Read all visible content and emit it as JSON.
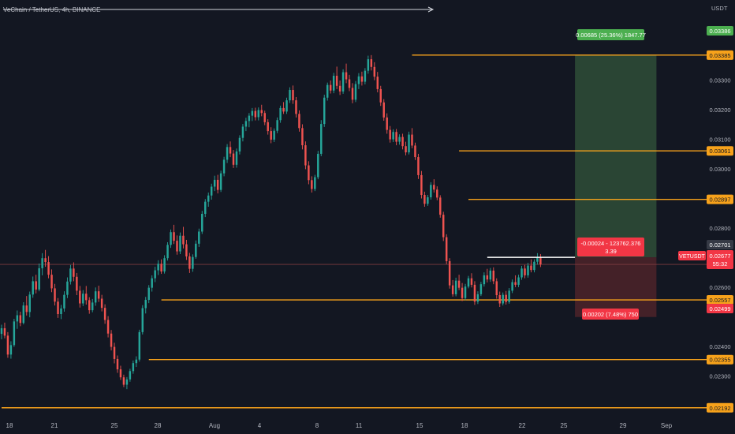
{
  "header": {
    "title": "VeChain / TetherUS, 4h, BINANCE",
    "currency": "USDT"
  },
  "colors": {
    "background": "#131722",
    "up": "#26a69a",
    "down": "#ef5350",
    "level": "#f7a21b",
    "target_zone": "#2e4a36",
    "stop_zone": "#4a2229",
    "price_line": "#7e3a3f",
    "axis_text": "#b2b5be"
  },
  "chart_data": {
    "type": "candlestick",
    "symbol": "VETUSDT",
    "timeframe": "4h",
    "x_ticks": [
      "18",
      "21",
      "25",
      "28",
      "Aug",
      "4",
      "8",
      "11",
      "15",
      "18",
      "22",
      "25",
      "29",
      "Sep"
    ],
    "y_ticks": [
      "0.02300",
      "0.02400",
      "0.02600",
      "0.02800",
      "0.03000",
      "0.03100",
      "0.03200",
      "0.03300"
    ],
    "ylim": [
      0.0217,
      0.0355
    ],
    "candles": [
      {
        "o": 0.02442,
        "h": 0.02473,
        "l": 0.02424,
        "c": 0.02461
      },
      {
        "o": 0.02461,
        "h": 0.0248,
        "l": 0.02427,
        "c": 0.02436
      },
      {
        "o": 0.02436,
        "h": 0.02448,
        "l": 0.02361,
        "c": 0.02372
      },
      {
        "o": 0.02372,
        "h": 0.02417,
        "l": 0.02358,
        "c": 0.02404
      },
      {
        "o": 0.02404,
        "h": 0.02493,
        "l": 0.02398,
        "c": 0.02484
      },
      {
        "o": 0.02484,
        "h": 0.02521,
        "l": 0.02459,
        "c": 0.02505
      },
      {
        "o": 0.02505,
        "h": 0.02517,
        "l": 0.02468,
        "c": 0.02479
      },
      {
        "o": 0.02479,
        "h": 0.02549,
        "l": 0.02474,
        "c": 0.02538
      },
      {
        "o": 0.02538,
        "h": 0.0257,
        "l": 0.02504,
        "c": 0.02516
      },
      {
        "o": 0.02516,
        "h": 0.02585,
        "l": 0.02498,
        "c": 0.02575
      },
      {
        "o": 0.02575,
        "h": 0.02636,
        "l": 0.02564,
        "c": 0.0262
      },
      {
        "o": 0.0262,
        "h": 0.02642,
        "l": 0.02579,
        "c": 0.02592
      },
      {
        "o": 0.02592,
        "h": 0.0268,
        "l": 0.02586,
        "c": 0.02664
      },
      {
        "o": 0.02664,
        "h": 0.02715,
        "l": 0.0264,
        "c": 0.02698
      },
      {
        "o": 0.02698,
        "h": 0.02726,
        "l": 0.02669,
        "c": 0.02685
      },
      {
        "o": 0.02685,
        "h": 0.02705,
        "l": 0.0263,
        "c": 0.02642
      },
      {
        "o": 0.02642,
        "h": 0.0266,
        "l": 0.02583,
        "c": 0.02596
      },
      {
        "o": 0.02596,
        "h": 0.02611,
        "l": 0.02538,
        "c": 0.02551
      },
      {
        "o": 0.02551,
        "h": 0.02563,
        "l": 0.02496,
        "c": 0.02509
      },
      {
        "o": 0.02509,
        "h": 0.0254,
        "l": 0.02492,
        "c": 0.02528
      },
      {
        "o": 0.02528,
        "h": 0.02586,
        "l": 0.02517,
        "c": 0.02574
      },
      {
        "o": 0.02574,
        "h": 0.02633,
        "l": 0.02563,
        "c": 0.02619
      },
      {
        "o": 0.02619,
        "h": 0.02675,
        "l": 0.02609,
        "c": 0.02663
      },
      {
        "o": 0.02663,
        "h": 0.02684,
        "l": 0.0262,
        "c": 0.02635
      },
      {
        "o": 0.02635,
        "h": 0.02648,
        "l": 0.02573,
        "c": 0.02588
      },
      {
        "o": 0.02588,
        "h": 0.02604,
        "l": 0.02531,
        "c": 0.02545
      },
      {
        "o": 0.02545,
        "h": 0.0259,
        "l": 0.02536,
        "c": 0.02578
      },
      {
        "o": 0.02578,
        "h": 0.02604,
        "l": 0.02541,
        "c": 0.02556
      },
      {
        "o": 0.02556,
        "h": 0.02566,
        "l": 0.0251,
        "c": 0.02522
      },
      {
        "o": 0.02522,
        "h": 0.0256,
        "l": 0.02515,
        "c": 0.02548
      },
      {
        "o": 0.02548,
        "h": 0.02599,
        "l": 0.02537,
        "c": 0.02586
      },
      {
        "o": 0.02586,
        "h": 0.02605,
        "l": 0.0255,
        "c": 0.02561
      },
      {
        "o": 0.02561,
        "h": 0.02574,
        "l": 0.02518,
        "c": 0.0253
      },
      {
        "o": 0.0253,
        "h": 0.02542,
        "l": 0.02476,
        "c": 0.02489
      },
      {
        "o": 0.02489,
        "h": 0.02502,
        "l": 0.0243,
        "c": 0.02443
      },
      {
        "o": 0.02443,
        "h": 0.02455,
        "l": 0.02386,
        "c": 0.02398
      },
      {
        "o": 0.02398,
        "h": 0.02412,
        "l": 0.02342,
        "c": 0.02357
      },
      {
        "o": 0.02357,
        "h": 0.02369,
        "l": 0.0231,
        "c": 0.02322
      },
      {
        "o": 0.02322,
        "h": 0.02334,
        "l": 0.02286,
        "c": 0.02295
      },
      {
        "o": 0.02295,
        "h": 0.02304,
        "l": 0.02262,
        "c": 0.0227
      },
      {
        "o": 0.0227,
        "h": 0.02296,
        "l": 0.02255,
        "c": 0.02288
      },
      {
        "o": 0.02288,
        "h": 0.02324,
        "l": 0.0228,
        "c": 0.02316
      },
      {
        "o": 0.02316,
        "h": 0.02352,
        "l": 0.02307,
        "c": 0.02343
      },
      {
        "o": 0.02343,
        "h": 0.02366,
        "l": 0.0233,
        "c": 0.02355
      },
      {
        "o": 0.02355,
        "h": 0.02456,
        "l": 0.02348,
        "c": 0.02448
      },
      {
        "o": 0.02448,
        "h": 0.02539,
        "l": 0.0244,
        "c": 0.02529
      },
      {
        "o": 0.02529,
        "h": 0.02567,
        "l": 0.02511,
        "c": 0.02557
      },
      {
        "o": 0.02557,
        "h": 0.02607,
        "l": 0.02546,
        "c": 0.02598
      },
      {
        "o": 0.02598,
        "h": 0.0264,
        "l": 0.02585,
        "c": 0.0263
      },
      {
        "o": 0.0263,
        "h": 0.02669,
        "l": 0.02617,
        "c": 0.02657
      },
      {
        "o": 0.02657,
        "h": 0.02691,
        "l": 0.02641,
        "c": 0.02679
      },
      {
        "o": 0.02679,
        "h": 0.02694,
        "l": 0.02645,
        "c": 0.02653
      },
      {
        "o": 0.02653,
        "h": 0.02708,
        "l": 0.02646,
        "c": 0.02698
      },
      {
        "o": 0.02698,
        "h": 0.02752,
        "l": 0.0269,
        "c": 0.02743
      },
      {
        "o": 0.02743,
        "h": 0.02795,
        "l": 0.02733,
        "c": 0.02786
      },
      {
        "o": 0.02786,
        "h": 0.02811,
        "l": 0.02746,
        "c": 0.02757
      },
      {
        "o": 0.02757,
        "h": 0.02775,
        "l": 0.0271,
        "c": 0.02721
      },
      {
        "o": 0.02721,
        "h": 0.02785,
        "l": 0.02712,
        "c": 0.02774
      },
      {
        "o": 0.02774,
        "h": 0.02804,
        "l": 0.02731,
        "c": 0.02745
      },
      {
        "o": 0.02745,
        "h": 0.0276,
        "l": 0.02692,
        "c": 0.02704
      },
      {
        "o": 0.02704,
        "h": 0.02716,
        "l": 0.02648,
        "c": 0.02662
      },
      {
        "o": 0.02662,
        "h": 0.02711,
        "l": 0.02652,
        "c": 0.02702
      },
      {
        "o": 0.02702,
        "h": 0.02758,
        "l": 0.02696,
        "c": 0.02747
      },
      {
        "o": 0.02747,
        "h": 0.02798,
        "l": 0.02736,
        "c": 0.02788
      },
      {
        "o": 0.02788,
        "h": 0.02858,
        "l": 0.0278,
        "c": 0.02848
      },
      {
        "o": 0.02848,
        "h": 0.02898,
        "l": 0.02837,
        "c": 0.02889
      },
      {
        "o": 0.02889,
        "h": 0.0292,
        "l": 0.02872,
        "c": 0.0291
      },
      {
        "o": 0.0291,
        "h": 0.0295,
        "l": 0.02896,
        "c": 0.0294
      },
      {
        "o": 0.0294,
        "h": 0.02977,
        "l": 0.02925,
        "c": 0.02963
      },
      {
        "o": 0.02963,
        "h": 0.0298,
        "l": 0.02917,
        "c": 0.02929
      },
      {
        "o": 0.02929,
        "h": 0.02994,
        "l": 0.02922,
        "c": 0.02985
      },
      {
        "o": 0.02985,
        "h": 0.03041,
        "l": 0.02975,
        "c": 0.03031
      },
      {
        "o": 0.03031,
        "h": 0.03084,
        "l": 0.0302,
        "c": 0.03074
      },
      {
        "o": 0.03074,
        "h": 0.03093,
        "l": 0.0304,
        "c": 0.03052
      },
      {
        "o": 0.03052,
        "h": 0.03064,
        "l": 0.03003,
        "c": 0.03014
      },
      {
        "o": 0.03014,
        "h": 0.03069,
        "l": 0.03004,
        "c": 0.03059
      },
      {
        "o": 0.03059,
        "h": 0.03114,
        "l": 0.03049,
        "c": 0.03105
      },
      {
        "o": 0.03105,
        "h": 0.03152,
        "l": 0.03093,
        "c": 0.03143
      },
      {
        "o": 0.03143,
        "h": 0.03173,
        "l": 0.03128,
        "c": 0.03162
      },
      {
        "o": 0.03162,
        "h": 0.03189,
        "l": 0.03141,
        "c": 0.0318
      },
      {
        "o": 0.0318,
        "h": 0.03206,
        "l": 0.03162,
        "c": 0.03196
      },
      {
        "o": 0.03196,
        "h": 0.03207,
        "l": 0.03164,
        "c": 0.03175
      },
      {
        "o": 0.03175,
        "h": 0.03208,
        "l": 0.03164,
        "c": 0.03199
      },
      {
        "o": 0.03199,
        "h": 0.03217,
        "l": 0.03178,
        "c": 0.03189
      },
      {
        "o": 0.03189,
        "h": 0.03197,
        "l": 0.03148,
        "c": 0.03158
      },
      {
        "o": 0.03158,
        "h": 0.03168,
        "l": 0.03116,
        "c": 0.03128
      },
      {
        "o": 0.03128,
        "h": 0.03141,
        "l": 0.03087,
        "c": 0.03099
      },
      {
        "o": 0.03099,
        "h": 0.03137,
        "l": 0.03091,
        "c": 0.03129
      },
      {
        "o": 0.03129,
        "h": 0.03174,
        "l": 0.03121,
        "c": 0.03165
      },
      {
        "o": 0.03165,
        "h": 0.03214,
        "l": 0.03156,
        "c": 0.03206
      },
      {
        "o": 0.03206,
        "h": 0.03226,
        "l": 0.03186,
        "c": 0.03194
      },
      {
        "o": 0.03194,
        "h": 0.03241,
        "l": 0.03186,
        "c": 0.03232
      },
      {
        "o": 0.03232,
        "h": 0.03276,
        "l": 0.03223,
        "c": 0.03267
      },
      {
        "o": 0.03267,
        "h": 0.03282,
        "l": 0.0322,
        "c": 0.03232
      },
      {
        "o": 0.03232,
        "h": 0.03243,
        "l": 0.03174,
        "c": 0.03186
      },
      {
        "o": 0.03186,
        "h": 0.03198,
        "l": 0.03126,
        "c": 0.03138
      },
      {
        "o": 0.03138,
        "h": 0.03151,
        "l": 0.03066,
        "c": 0.0308
      },
      {
        "o": 0.0308,
        "h": 0.03093,
        "l": 0.02999,
        "c": 0.03012
      },
      {
        "o": 0.03012,
        "h": 0.03026,
        "l": 0.02948,
        "c": 0.02962
      },
      {
        "o": 0.02962,
        "h": 0.02975,
        "l": 0.0292,
        "c": 0.02932
      },
      {
        "o": 0.02932,
        "h": 0.0298,
        "l": 0.02925,
        "c": 0.02972
      },
      {
        "o": 0.02972,
        "h": 0.03061,
        "l": 0.02965,
        "c": 0.03051
      },
      {
        "o": 0.03051,
        "h": 0.03165,
        "l": 0.03043,
        "c": 0.03152
      },
      {
        "o": 0.03152,
        "h": 0.03251,
        "l": 0.03142,
        "c": 0.03241
      },
      {
        "o": 0.03241,
        "h": 0.03292,
        "l": 0.03231,
        "c": 0.03284
      },
      {
        "o": 0.03284,
        "h": 0.03299,
        "l": 0.03255,
        "c": 0.03265
      },
      {
        "o": 0.03265,
        "h": 0.03325,
        "l": 0.03256,
        "c": 0.03315
      },
      {
        "o": 0.03315,
        "h": 0.03346,
        "l": 0.0327,
        "c": 0.03281
      },
      {
        "o": 0.03281,
        "h": 0.03299,
        "l": 0.0325,
        "c": 0.03262
      },
      {
        "o": 0.03262,
        "h": 0.03337,
        "l": 0.03254,
        "c": 0.03327
      },
      {
        "o": 0.03327,
        "h": 0.03356,
        "l": 0.0329,
        "c": 0.03303
      },
      {
        "o": 0.03303,
        "h": 0.03318,
        "l": 0.03263,
        "c": 0.03274
      },
      {
        "o": 0.03274,
        "h": 0.0329,
        "l": 0.03222,
        "c": 0.03234
      },
      {
        "o": 0.03234,
        "h": 0.03297,
        "l": 0.03226,
        "c": 0.03287
      },
      {
        "o": 0.03287,
        "h": 0.03324,
        "l": 0.0327,
        "c": 0.03313
      },
      {
        "o": 0.03313,
        "h": 0.03329,
        "l": 0.03282,
        "c": 0.03295
      },
      {
        "o": 0.03295,
        "h": 0.03341,
        "l": 0.03286,
        "c": 0.03332
      },
      {
        "o": 0.03332,
        "h": 0.03383,
        "l": 0.03322,
        "c": 0.03371
      },
      {
        "o": 0.03371,
        "h": 0.03385,
        "l": 0.03333,
        "c": 0.03345
      },
      {
        "o": 0.03345,
        "h": 0.03361,
        "l": 0.033,
        "c": 0.03312
      },
      {
        "o": 0.03312,
        "h": 0.03328,
        "l": 0.03259,
        "c": 0.0327
      },
      {
        "o": 0.0327,
        "h": 0.03281,
        "l": 0.03213,
        "c": 0.03225
      },
      {
        "o": 0.03225,
        "h": 0.03236,
        "l": 0.03163,
        "c": 0.03174
      },
      {
        "o": 0.03174,
        "h": 0.03188,
        "l": 0.03119,
        "c": 0.03132
      },
      {
        "o": 0.03132,
        "h": 0.03145,
        "l": 0.03089,
        "c": 0.031
      },
      {
        "o": 0.031,
        "h": 0.03134,
        "l": 0.03091,
        "c": 0.03125
      },
      {
        "o": 0.03125,
        "h": 0.03135,
        "l": 0.0308,
        "c": 0.03092
      },
      {
        "o": 0.03092,
        "h": 0.03117,
        "l": 0.03082,
        "c": 0.03108
      },
      {
        "o": 0.03108,
        "h": 0.03119,
        "l": 0.03066,
        "c": 0.03077
      },
      {
        "o": 0.03077,
        "h": 0.03092,
        "l": 0.03046,
        "c": 0.03056
      },
      {
        "o": 0.03056,
        "h": 0.03126,
        "l": 0.03049,
        "c": 0.03116
      },
      {
        "o": 0.03116,
        "h": 0.03138,
        "l": 0.0307,
        "c": 0.03079
      },
      {
        "o": 0.03079,
        "h": 0.03089,
        "l": 0.0303,
        "c": 0.0304
      },
      {
        "o": 0.0304,
        "h": 0.03051,
        "l": 0.02966,
        "c": 0.02979
      },
      {
        "o": 0.02979,
        "h": 0.02993,
        "l": 0.029,
        "c": 0.02912
      },
      {
        "o": 0.02912,
        "h": 0.02923,
        "l": 0.02872,
        "c": 0.02882
      },
      {
        "o": 0.02882,
        "h": 0.02912,
        "l": 0.02875,
        "c": 0.02904
      },
      {
        "o": 0.02904,
        "h": 0.02955,
        "l": 0.02896,
        "c": 0.02946
      },
      {
        "o": 0.02946,
        "h": 0.02965,
        "l": 0.0292,
        "c": 0.0293
      },
      {
        "o": 0.0293,
        "h": 0.02941,
        "l": 0.02894,
        "c": 0.02903
      },
      {
        "o": 0.02903,
        "h": 0.02911,
        "l": 0.02835,
        "c": 0.02845
      },
      {
        "o": 0.02845,
        "h": 0.02855,
        "l": 0.02756,
        "c": 0.02769
      },
      {
        "o": 0.02769,
        "h": 0.02779,
        "l": 0.02678,
        "c": 0.02688
      },
      {
        "o": 0.02688,
        "h": 0.02698,
        "l": 0.02595,
        "c": 0.02606
      },
      {
        "o": 0.02606,
        "h": 0.02624,
        "l": 0.02568,
        "c": 0.02576
      },
      {
        "o": 0.02576,
        "h": 0.02632,
        "l": 0.02569,
        "c": 0.02622
      },
      {
        "o": 0.02622,
        "h": 0.02642,
        "l": 0.0259,
        "c": 0.02598
      },
      {
        "o": 0.02598,
        "h": 0.02614,
        "l": 0.02553,
        "c": 0.02563
      },
      {
        "o": 0.02563,
        "h": 0.02611,
        "l": 0.02556,
        "c": 0.02602
      },
      {
        "o": 0.02602,
        "h": 0.02638,
        "l": 0.02596,
        "c": 0.0263
      },
      {
        "o": 0.0263,
        "h": 0.02647,
        "l": 0.02599,
        "c": 0.02608
      },
      {
        "o": 0.02608,
        "h": 0.0262,
        "l": 0.0254,
        "c": 0.02551
      },
      {
        "o": 0.02551,
        "h": 0.02586,
        "l": 0.02543,
        "c": 0.02576
      },
      {
        "o": 0.02576,
        "h": 0.02618,
        "l": 0.0257,
        "c": 0.0261
      },
      {
        "o": 0.0261,
        "h": 0.0265,
        "l": 0.02602,
        "c": 0.0264
      },
      {
        "o": 0.0264,
        "h": 0.02662,
        "l": 0.02616,
        "c": 0.02626
      },
      {
        "o": 0.02626,
        "h": 0.02665,
        "l": 0.02618,
        "c": 0.02656
      },
      {
        "o": 0.02656,
        "h": 0.02667,
        "l": 0.0261,
        "c": 0.0262
      },
      {
        "o": 0.0262,
        "h": 0.0263,
        "l": 0.02561,
        "c": 0.02573
      },
      {
        "o": 0.02573,
        "h": 0.02585,
        "l": 0.02533,
        "c": 0.02545
      },
      {
        "o": 0.02545,
        "h": 0.02582,
        "l": 0.02538,
        "c": 0.02574
      },
      {
        "o": 0.02574,
        "h": 0.02587,
        "l": 0.02541,
        "c": 0.0255
      },
      {
        "o": 0.0255,
        "h": 0.02597,
        "l": 0.02544,
        "c": 0.02588
      },
      {
        "o": 0.02588,
        "h": 0.02626,
        "l": 0.0258,
        "c": 0.02617
      },
      {
        "o": 0.02617,
        "h": 0.0264,
        "l": 0.026,
        "c": 0.02608
      },
      {
        "o": 0.02608,
        "h": 0.02642,
        "l": 0.026,
        "c": 0.02633
      },
      {
        "o": 0.02633,
        "h": 0.02672,
        "l": 0.02625,
        "c": 0.02663
      },
      {
        "o": 0.02663,
        "h": 0.02675,
        "l": 0.0263,
        "c": 0.0264
      },
      {
        "o": 0.0264,
        "h": 0.02682,
        "l": 0.02632,
        "c": 0.02673
      },
      {
        "o": 0.02673,
        "h": 0.02694,
        "l": 0.0265,
        "c": 0.02658
      },
      {
        "o": 0.02658,
        "h": 0.02694,
        "l": 0.0265,
        "c": 0.02686
      },
      {
        "o": 0.02686,
        "h": 0.02715,
        "l": 0.02676,
        "c": 0.02701
      },
      {
        "o": 0.02701,
        "h": 0.02712,
        "l": 0.02668,
        "c": 0.02677
      }
    ],
    "x_span": [
      -0.5,
      224
    ],
    "levels": [
      {
        "price": 0.03385,
        "start": 131,
        "label": "0.03385"
      },
      {
        "price": 0.03061,
        "start": 146,
        "label": "0.03061"
      },
      {
        "price": 0.02897,
        "start": 149,
        "label": "0.02897"
      },
      {
        "price": 0.02557,
        "start": 51,
        "label": "0.02557"
      },
      {
        "price": 0.02355,
        "start": 47,
        "label": "0.02355"
      },
      {
        "price": 0.02192,
        "start": 0,
        "label": "0.02192"
      }
    ],
    "white_level": {
      "price": 0.02701,
      "start": 155,
      "end": 183
    },
    "position": {
      "entry": 0.02701,
      "target": 0.03386,
      "stop": 0.02499,
      "start": 183,
      "end": 209,
      "target_label": "0.00685 (25.36%) 1847.77",
      "stop_label": "0.00202 (7.48%) 750",
      "pnl_label_line1": "-0.00024 - 123762.376",
      "pnl_label_line2": "3.39"
    },
    "price_badges": {
      "target": "0.03386",
      "entry": "0.02701",
      "current": "0.02677",
      "countdown": "55:32",
      "stop": "0.02499",
      "symbol": "VETUSDT"
    },
    "current_price": 0.02677
  }
}
